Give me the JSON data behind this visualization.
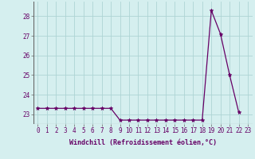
{
  "x": [
    0,
    1,
    2,
    3,
    4,
    5,
    6,
    7,
    8,
    9,
    10,
    11,
    12,
    13,
    14,
    15,
    16,
    17,
    18,
    19,
    20,
    21,
    22
  ],
  "y": [
    23.3,
    23.3,
    23.3,
    23.3,
    23.3,
    23.3,
    23.3,
    23.3,
    23.3,
    22.7,
    22.7,
    22.7,
    22.7,
    22.7,
    22.7,
    22.7,
    22.7,
    22.7,
    22.7,
    28.3,
    27.1,
    25.0,
    23.1
  ],
  "line_color": "#660066",
  "marker": "*",
  "marker_size": 3.5,
  "bg_color": "#d5efef",
  "grid_color": "#aed4d4",
  "xlabel": "Windchill (Refroidissement éolien,°C)",
  "xlabel_color": "#660066",
  "tick_color": "#660066",
  "axis_color": "#666666",
  "ylim_min": 22.5,
  "ylim_max": 28.75,
  "yticks": [
    23,
    24,
    25,
    26,
    27,
    28
  ],
  "xticks": [
    0,
    1,
    2,
    3,
    4,
    5,
    6,
    7,
    8,
    9,
    10,
    11,
    12,
    13,
    14,
    15,
    16,
    17,
    18,
    19,
    20,
    21,
    22,
    23
  ],
  "xtick_labels": [
    "0",
    "1",
    "2",
    "3",
    "4",
    "5",
    "6",
    "7",
    "8",
    "9",
    "10",
    "11",
    "12",
    "13",
    "14",
    "15",
    "16",
    "17",
    "18",
    "19",
    "20",
    "21",
    "22",
    "23"
  ],
  "ytick_labels": [
    "23",
    "24",
    "25",
    "26",
    "27",
    "28"
  ],
  "tick_fontsize": 5.5,
  "xlabel_fontsize": 6.0
}
